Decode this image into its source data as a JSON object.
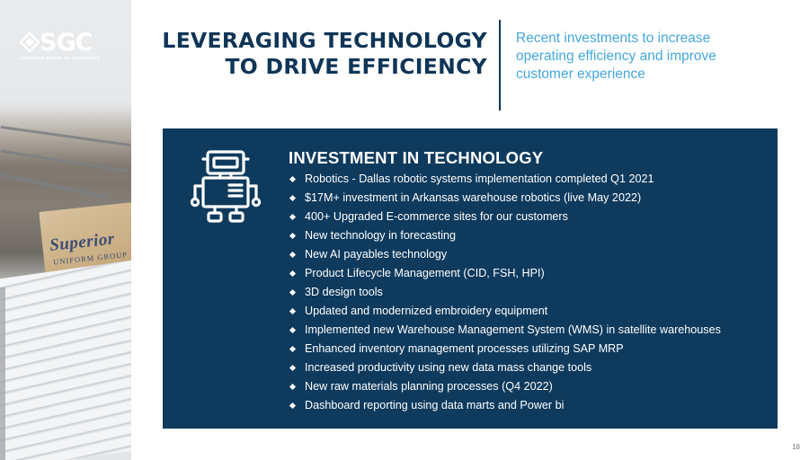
{
  "logo": {
    "name": "SGC",
    "tagline": "SUPERIOR GROUP OF COMPANIES"
  },
  "photo": {
    "box_brand": "Superior",
    "box_sub": "UNIFORM GROUP"
  },
  "header": {
    "title_line1": "LEVERAGING TECHNOLOGY",
    "title_line2": "TO DRIVE EFFICIENCY",
    "subtitle": "Recent investments to increase operating efficiency and improve customer experience"
  },
  "panel": {
    "icon": "robot-icon",
    "heading": "INVESTMENT IN TECHNOLOGY",
    "items": [
      "Robotics - Dallas robotic systems implementation completed Q1 2021",
      "$17M+ investment in Arkansas warehouse robotics (live May 2022)",
      "400+ Upgraded E-commerce sites for our customers",
      "New technology in forecasting",
      "New AI payables technology",
      "Product Lifecycle Management (CID, FSH, HPI)",
      "3D design tools",
      "Updated and modernized embroidery equipment",
      "Implemented new Warehouse Management System (WMS) in satellite warehouses",
      "Enhanced inventory management processes utilizing SAP MRP",
      "Increased productivity using new data mass change tools",
      "New raw materials planning processes (Q4 2022)",
      "Dashboard reporting using data marts and Power bi"
    ]
  },
  "footer": {
    "page_number": "18"
  },
  "colors": {
    "navy": "#0e3a5d",
    "title_navy": "#0f3557",
    "accent_blue": "#45a7dc"
  }
}
